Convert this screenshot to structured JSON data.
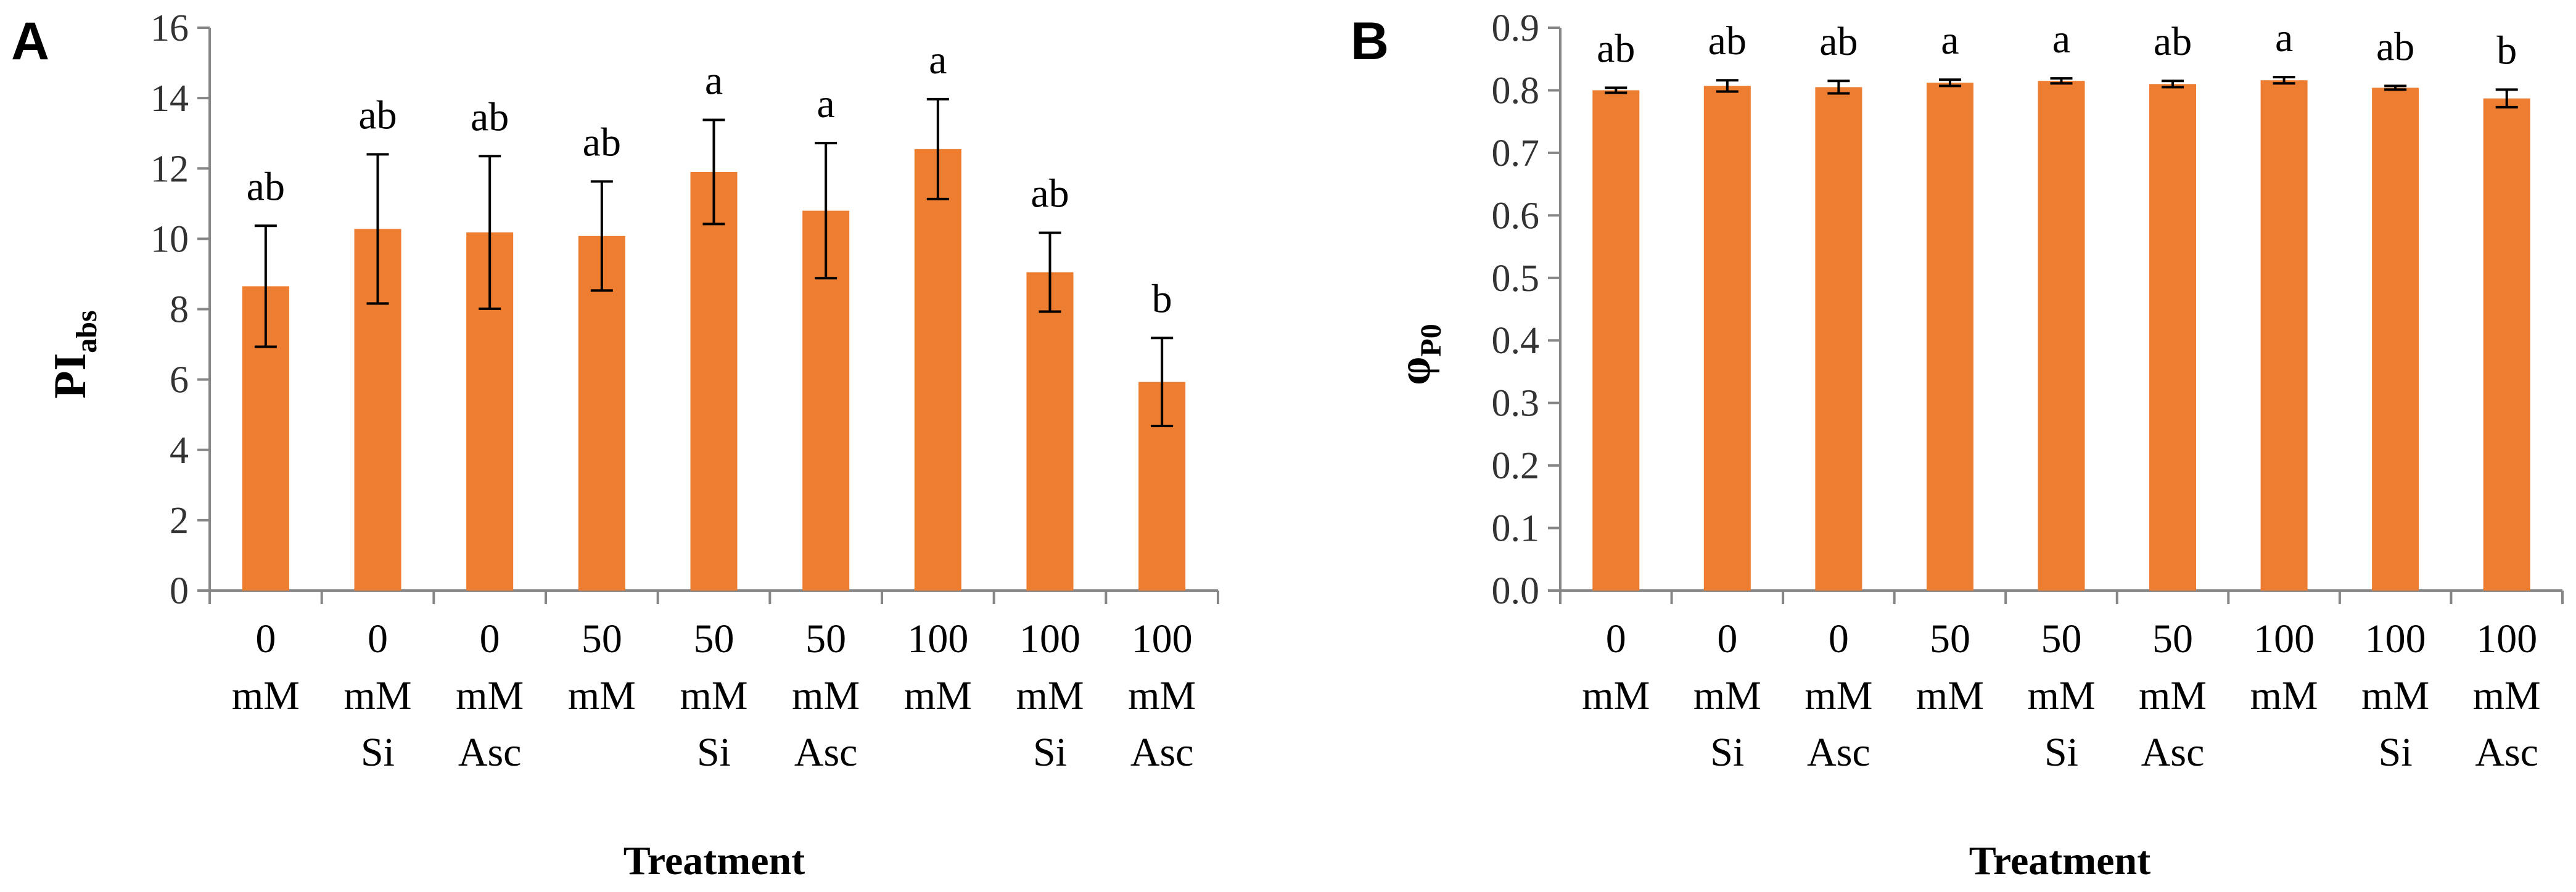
{
  "chart_data": [
    {
      "panel": "A",
      "type": "bar",
      "ylabel_main": "PI",
      "ylabel_sub": "abs",
      "xlabel": "Treatment",
      "ylim": [
        0,
        16
      ],
      "yticks": [
        0,
        2,
        4,
        6,
        8,
        10,
        12,
        14,
        16
      ],
      "ytick_labels": [
        "0",
        "2",
        "4",
        "6",
        "8",
        "10",
        "12",
        "14",
        "16"
      ],
      "categories": [
        [
          "0",
          "mM"
        ],
        [
          "0",
          "mM",
          "Si"
        ],
        [
          "0",
          "mM",
          "Asc"
        ],
        [
          "50",
          "mM"
        ],
        [
          "50",
          "mM",
          "Si"
        ],
        [
          "50",
          "mM",
          "Asc"
        ],
        [
          "100",
          "mM"
        ],
        [
          "100",
          "mM",
          "Si"
        ],
        [
          "100",
          "mM",
          "Asc"
        ]
      ],
      "values": [
        8.65,
        10.28,
        10.18,
        10.08,
        11.9,
        10.8,
        12.55,
        9.05,
        5.93
      ],
      "errors": [
        1.72,
        2.12,
        2.17,
        1.55,
        1.48,
        1.92,
        1.42,
        1.12,
        1.25
      ],
      "significance": [
        "ab",
        "ab",
        "ab",
        "ab",
        "a",
        "a",
        "a",
        "ab",
        "b"
      ],
      "bar_color": "#ED7D31"
    },
    {
      "panel": "B",
      "type": "bar",
      "ylabel_main": "φ",
      "ylabel_sub": "P0",
      "xlabel": "Treatment",
      "ylim": [
        0,
        0.9
      ],
      "yticks": [
        0,
        0.1,
        0.2,
        0.3,
        0.4,
        0.5,
        0.6,
        0.7,
        0.8,
        0.9
      ],
      "ytick_labels": [
        "0.0",
        "0.1",
        "0.2",
        "0.3",
        "0.4",
        "0.5",
        "0.6",
        "0.7",
        "0.8",
        "0.9"
      ],
      "categories": [
        [
          "0",
          "mM"
        ],
        [
          "0",
          "mM",
          "Si"
        ],
        [
          "0",
          "mM",
          "Asc"
        ],
        [
          "50",
          "mM"
        ],
        [
          "50",
          "mM",
          "Si"
        ],
        [
          "50",
          "mM",
          "Asc"
        ],
        [
          "100",
          "mM"
        ],
        [
          "100",
          "mM",
          "Si"
        ],
        [
          "100",
          "mM",
          "Asc"
        ]
      ],
      "values": [
        0.8,
        0.807,
        0.805,
        0.812,
        0.815,
        0.81,
        0.816,
        0.804,
        0.787
      ],
      "errors": [
        0.004,
        0.009,
        0.01,
        0.005,
        0.004,
        0.005,
        0.005,
        0.003,
        0.014
      ],
      "significance": [
        "ab",
        "ab",
        "ab",
        "a",
        "a",
        "ab",
        "a",
        "ab",
        "b"
      ],
      "bar_color": "#ED7D31"
    }
  ]
}
